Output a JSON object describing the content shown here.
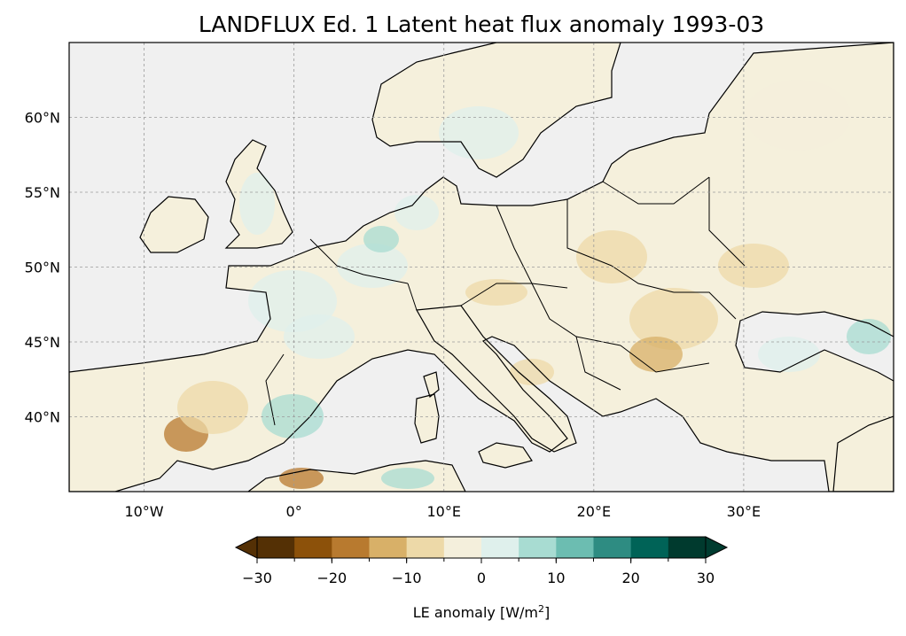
{
  "title": "LANDFLUX Ed. 1 Latent heat flux anomaly 1993-03",
  "map": {
    "lon_range": [
      -15,
      40
    ],
    "lat_range": [
      35,
      65
    ],
    "lon_ticks": [
      {
        "value": -10,
        "label": "10°W"
      },
      {
        "value": 0,
        "label": "0°"
      },
      {
        "value": 10,
        "label": "10°E"
      },
      {
        "value": 20,
        "label": "20°E"
      },
      {
        "value": 30,
        "label": "30°E"
      }
    ],
    "lat_ticks": [
      {
        "value": 40,
        "label": "40°N"
      },
      {
        "value": 45,
        "label": "45°N"
      },
      {
        "value": 50,
        "label": "50°N"
      },
      {
        "value": 55,
        "label": "55°N"
      },
      {
        "value": 60,
        "label": "60°N"
      }
    ],
    "gridlines": true,
    "ocean_color": "#f0f0f0",
    "land_base_color": "#f5f0dc"
  },
  "colorbar": {
    "label_prefix": "LE anomaly [W/m",
    "label_sup": "2",
    "label_suffix": "]",
    "levels": [
      -30,
      -25,
      -20,
      -15,
      -10,
      -5,
      0,
      5,
      10,
      15,
      20,
      25,
      30
    ],
    "ticks": [
      {
        "value": -30,
        "label": "−30"
      },
      {
        "value": -20,
        "label": "−20"
      },
      {
        "value": -10,
        "label": "−10"
      },
      {
        "value": 0,
        "label": "0"
      },
      {
        "value": 10,
        "label": "10"
      },
      {
        "value": 20,
        "label": "20"
      },
      {
        "value": 30,
        "label": "30"
      }
    ],
    "colors": [
      "#543005",
      "#8c510a",
      "#bf812d",
      "#dfc27d",
      "#f6e8c3",
      "#f5f5f5",
      "#c7eae5",
      "#80cdc1",
      "#35978f",
      "#01665e",
      "#003c30"
    ],
    "extend": "both",
    "extend_low_color": "#543005",
    "extend_high_color": "#003c30",
    "band_colors": [
      "#543005",
      "#8c510a",
      "#b87a2f",
      "#d8b068",
      "#edd9a8",
      "#f4efdc",
      "#dff0ec",
      "#a8dcd2",
      "#6cbdb1",
      "#2e8c82",
      "#006357",
      "#003a2e"
    ]
  }
}
